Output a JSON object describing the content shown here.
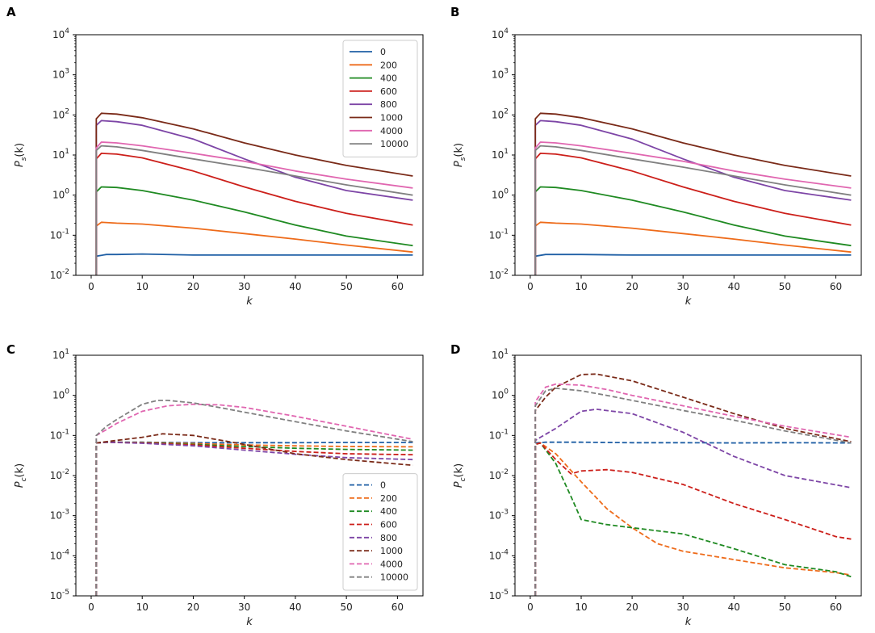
{
  "colors": {
    "0": "#1f5fa5",
    "200": "#ee6b1a",
    "400": "#1f8a22",
    "600": "#cc1f1a",
    "800": "#7d45a6",
    "1000": "#7a2a18",
    "4000": "#e066b0",
    "10000": "#808080"
  },
  "chart_data": [
    {
      "panel": "A",
      "type": "line",
      "line_style": "solid",
      "yscale": "log",
      "xlabel": "k",
      "ylabel": "P_s(k)",
      "ylabel_main": "P",
      "ylabel_sub": "s",
      "ylabel_tail": "(k)",
      "xlim": [
        -3,
        65
      ],
      "ylim": [
        0.01,
        10000
      ],
      "xticks": [
        0,
        10,
        20,
        30,
        40,
        50,
        60
      ],
      "ytick_exponents": [
        -2,
        -1,
        0,
        1,
        2,
        3,
        4
      ],
      "legend": {
        "placement": "upper right",
        "entries": [
          "0",
          "200",
          "400",
          "600",
          "800",
          "1000",
          "4000",
          "10000"
        ]
      },
      "series": [
        {
          "name": "0",
          "x": [
            1,
            1,
            3,
            5,
            10,
            20,
            30,
            40,
            50,
            63
          ],
          "y": [
            0.01,
            0.03,
            0.033,
            0.033,
            0.034,
            0.032,
            0.032,
            0.032,
            0.032,
            0.032
          ]
        },
        {
          "name": "200",
          "x": [
            1,
            1,
            2,
            5,
            10,
            20,
            30,
            40,
            50,
            63
          ],
          "y": [
            0.01,
            0.17,
            0.21,
            0.2,
            0.19,
            0.15,
            0.11,
            0.08,
            0.057,
            0.038
          ]
        },
        {
          "name": "400",
          "x": [
            1,
            1,
            2,
            5,
            10,
            20,
            30,
            40,
            50,
            63
          ],
          "y": [
            0.01,
            1.2,
            1.6,
            1.55,
            1.3,
            0.75,
            0.38,
            0.18,
            0.095,
            0.055
          ]
        },
        {
          "name": "600",
          "x": [
            1,
            1,
            2,
            5,
            10,
            20,
            30,
            40,
            50,
            63
          ],
          "y": [
            0.01,
            8,
            11,
            10.5,
            8.5,
            4,
            1.6,
            0.7,
            0.35,
            0.18
          ]
        },
        {
          "name": "800",
          "x": [
            1,
            1,
            2,
            5,
            10,
            20,
            30,
            40,
            50,
            63
          ],
          "y": [
            0.01,
            55,
            72,
            68,
            55,
            25,
            8,
            2.8,
            1.3,
            0.75
          ]
        },
        {
          "name": "1000",
          "x": [
            1,
            1,
            2,
            5,
            10,
            20,
            30,
            40,
            50,
            63
          ],
          "y": [
            0.01,
            80,
            110,
            105,
            85,
            45,
            20,
            10,
            5.5,
            3
          ]
        },
        {
          "name": "4000",
          "x": [
            1,
            1,
            2,
            5,
            10,
            20,
            30,
            40,
            50,
            63
          ],
          "y": [
            0.01,
            15,
            21,
            20,
            17,
            11,
            7,
            4,
            2.5,
            1.5
          ]
        },
        {
          "name": "10000",
          "x": [
            1,
            1,
            2,
            5,
            10,
            20,
            30,
            40,
            50,
            63
          ],
          "y": [
            0.01,
            13,
            17,
            16,
            13,
            8,
            5,
            3,
            1.8,
            1
          ]
        }
      ]
    },
    {
      "panel": "B",
      "type": "line",
      "line_style": "solid",
      "yscale": "log",
      "xlabel": "k",
      "ylabel": "P_s(k)",
      "ylabel_main": "P",
      "ylabel_sub": "s",
      "ylabel_tail": "(k)",
      "xlim": [
        -3,
        65
      ],
      "ylim": [
        0.01,
        10000
      ],
      "xticks": [
        0,
        10,
        20,
        30,
        40,
        50,
        60
      ],
      "ytick_exponents": [
        -2,
        -1,
        0,
        1,
        2,
        3,
        4
      ],
      "legend": null,
      "series": [
        {
          "name": "0",
          "x": [
            1,
            1,
            3,
            5,
            10,
            20,
            30,
            40,
            50,
            63
          ],
          "y": [
            0.01,
            0.03,
            0.033,
            0.033,
            0.033,
            0.032,
            0.032,
            0.032,
            0.032,
            0.032
          ]
        },
        {
          "name": "200",
          "x": [
            1,
            1,
            2,
            5,
            10,
            20,
            30,
            40,
            50,
            63
          ],
          "y": [
            0.01,
            0.17,
            0.21,
            0.2,
            0.19,
            0.15,
            0.11,
            0.08,
            0.057,
            0.038
          ]
        },
        {
          "name": "400",
          "x": [
            1,
            1,
            2,
            5,
            10,
            20,
            30,
            40,
            50,
            63
          ],
          "y": [
            0.01,
            1.2,
            1.6,
            1.55,
            1.3,
            0.75,
            0.38,
            0.18,
            0.095,
            0.055
          ]
        },
        {
          "name": "600",
          "x": [
            1,
            1,
            2,
            5,
            10,
            20,
            30,
            40,
            50,
            63
          ],
          "y": [
            0.01,
            8,
            11,
            10.5,
            8.5,
            4,
            1.6,
            0.7,
            0.35,
            0.18
          ]
        },
        {
          "name": "800",
          "x": [
            1,
            1,
            2,
            5,
            10,
            20,
            30,
            40,
            50,
            63
          ],
          "y": [
            0.01,
            55,
            72,
            68,
            55,
            25,
            8,
            2.8,
            1.3,
            0.75
          ]
        },
        {
          "name": "1000",
          "x": [
            1,
            1,
            2,
            5,
            10,
            20,
            30,
            40,
            50,
            63
          ],
          "y": [
            0.01,
            80,
            110,
            105,
            85,
            45,
            20,
            10,
            5.5,
            3
          ]
        },
        {
          "name": "4000",
          "x": [
            1,
            1,
            2,
            5,
            10,
            20,
            30,
            40,
            50,
            63
          ],
          "y": [
            0.01,
            15,
            21,
            20,
            17,
            11,
            7,
            4,
            2.5,
            1.5
          ]
        },
        {
          "name": "10000",
          "x": [
            1,
            1,
            2,
            5,
            10,
            20,
            30,
            40,
            50,
            63
          ],
          "y": [
            0.01,
            13,
            17,
            16,
            13,
            8,
            5,
            3,
            1.8,
            1
          ]
        }
      ]
    },
    {
      "panel": "C",
      "type": "line",
      "line_style": "dashed",
      "yscale": "log",
      "xlabel": "k",
      "ylabel": "P_c(k)",
      "ylabel_main": "P",
      "ylabel_sub": "c",
      "ylabel_tail": "(k)",
      "xlim": [
        -3,
        65
      ],
      "ylim": [
        1e-05,
        10
      ],
      "xticks": [
        0,
        10,
        20,
        30,
        40,
        50,
        60
      ],
      "ytick_exponents": [
        -5,
        -4,
        -3,
        -2,
        -1,
        0,
        1
      ],
      "legend": {
        "placement": "lower right",
        "entries": [
          "0",
          "200",
          "400",
          "600",
          "800",
          "1000",
          "4000",
          "10000"
        ]
      },
      "series": [
        {
          "name": "0",
          "x": [
            1,
            1,
            3,
            10,
            20,
            30,
            40,
            50,
            63
          ],
          "y": [
            1e-05,
            0.065,
            0.068,
            0.068,
            0.066,
            0.066,
            0.066,
            0.067,
            0.067
          ]
        },
        {
          "name": "200",
          "x": [
            1,
            1,
            3,
            10,
            20,
            30,
            40,
            50,
            63
          ],
          "y": [
            1e-05,
            0.065,
            0.068,
            0.067,
            0.063,
            0.058,
            0.055,
            0.053,
            0.052
          ]
        },
        {
          "name": "400",
          "x": [
            1,
            1,
            3,
            10,
            20,
            30,
            40,
            50,
            63
          ],
          "y": [
            1e-05,
            0.065,
            0.068,
            0.066,
            0.06,
            0.053,
            0.048,
            0.045,
            0.043
          ]
        },
        {
          "name": "600",
          "x": [
            1,
            1,
            3,
            10,
            20,
            30,
            40,
            50,
            63
          ],
          "y": [
            1e-05,
            0.065,
            0.068,
            0.065,
            0.058,
            0.048,
            0.04,
            0.035,
            0.033
          ]
        },
        {
          "name": "800",
          "x": [
            1,
            1,
            3,
            10,
            20,
            30,
            40,
            50,
            63
          ],
          "y": [
            1e-05,
            0.065,
            0.068,
            0.064,
            0.055,
            0.043,
            0.034,
            0.028,
            0.025
          ]
        },
        {
          "name": "1000",
          "x": [
            1,
            1,
            3,
            10,
            14,
            20,
            30,
            40,
            50,
            63
          ],
          "y": [
            1e-05,
            0.065,
            0.07,
            0.09,
            0.11,
            0.1,
            0.06,
            0.035,
            0.025,
            0.018
          ]
        },
        {
          "name": "4000",
          "x": [
            1,
            1,
            3,
            5,
            10,
            15,
            20,
            25,
            30,
            40,
            50,
            63
          ],
          "y": [
            1e-05,
            0.1,
            0.14,
            0.2,
            0.4,
            0.55,
            0.6,
            0.58,
            0.5,
            0.3,
            0.17,
            0.08
          ]
        },
        {
          "name": "10000",
          "x": [
            1,
            1,
            3,
            5,
            10,
            13,
            15,
            20,
            25,
            30,
            40,
            50,
            63
          ],
          "y": [
            1e-05,
            0.1,
            0.17,
            0.25,
            0.6,
            0.75,
            0.75,
            0.65,
            0.5,
            0.38,
            0.22,
            0.13,
            0.07
          ]
        }
      ]
    },
    {
      "panel": "D",
      "type": "line",
      "line_style": "dashed",
      "yscale": "log",
      "xlabel": "k",
      "ylabel": "P_c(k)",
      "ylabel_main": "P",
      "ylabel_sub": "c",
      "ylabel_tail": "(k)",
      "xlim": [
        -3,
        65
      ],
      "ylim": [
        1e-05,
        10
      ],
      "xticks": [
        0,
        10,
        20,
        30,
        40,
        50,
        60
      ],
      "ytick_exponents": [
        -5,
        -4,
        -3,
        -2,
        -1,
        0,
        1
      ],
      "legend": null,
      "series": [
        {
          "name": "0",
          "x": [
            1,
            1,
            3,
            10,
            20,
            30,
            40,
            50,
            63
          ],
          "y": [
            1e-05,
            0.065,
            0.068,
            0.068,
            0.066,
            0.066,
            0.065,
            0.066,
            0.065
          ]
        },
        {
          "name": "200",
          "x": [
            1,
            1,
            2,
            5,
            10,
            15,
            20,
            25,
            30,
            40,
            50,
            60,
            63
          ],
          "y": [
            1e-05,
            0.06,
            0.065,
            0.035,
            0.007,
            0.0015,
            0.0005,
            0.0002,
            0.00013,
            8e-05,
            5e-05,
            3.8e-05,
            3.3e-05
          ]
        },
        {
          "name": "400",
          "x": [
            1,
            1,
            2,
            5,
            8,
            10,
            15,
            20,
            30,
            40,
            50,
            60,
            63
          ],
          "y": [
            1e-05,
            0.06,
            0.065,
            0.02,
            0.003,
            0.0008,
            0.0006,
            0.0005,
            0.00035,
            0.00015,
            6e-05,
            4e-05,
            3e-05
          ]
        },
        {
          "name": "600",
          "x": [
            1,
            1,
            2,
            5,
            8,
            10,
            15,
            20,
            30,
            40,
            50,
            60,
            63
          ],
          "y": [
            1e-05,
            0.06,
            0.065,
            0.025,
            0.011,
            0.013,
            0.014,
            0.012,
            0.006,
            0.002,
            0.0008,
            0.0003,
            0.00026
          ]
        },
        {
          "name": "800",
          "x": [
            1,
            1,
            2,
            5,
            10,
            13,
            20,
            30,
            40,
            50,
            63
          ],
          "y": [
            1e-05,
            0.075,
            0.09,
            0.15,
            0.4,
            0.45,
            0.35,
            0.12,
            0.03,
            0.01,
            0.005
          ]
        },
        {
          "name": "1000",
          "x": [
            1,
            1,
            3,
            5,
            10,
            13,
            20,
            30,
            40,
            50,
            63
          ],
          "y": [
            1e-05,
            0.42,
            0.9,
            1.6,
            3.3,
            3.4,
            2.3,
            0.9,
            0.35,
            0.15,
            0.07
          ]
        },
        {
          "name": "4000",
          "x": [
            1,
            1,
            3,
            5,
            10,
            15,
            20,
            30,
            40,
            50,
            63
          ],
          "y": [
            1e-05,
            0.7,
            1.6,
            1.9,
            1.8,
            1.4,
            1,
            0.55,
            0.3,
            0.17,
            0.09
          ]
        },
        {
          "name": "10000",
          "x": [
            1,
            1,
            3,
            5,
            10,
            15,
            20,
            30,
            40,
            50,
            63
          ],
          "y": [
            1e-05,
            0.55,
            1.3,
            1.5,
            1.3,
            1,
            0.75,
            0.42,
            0.24,
            0.13,
            0.065
          ]
        }
      ]
    }
  ]
}
